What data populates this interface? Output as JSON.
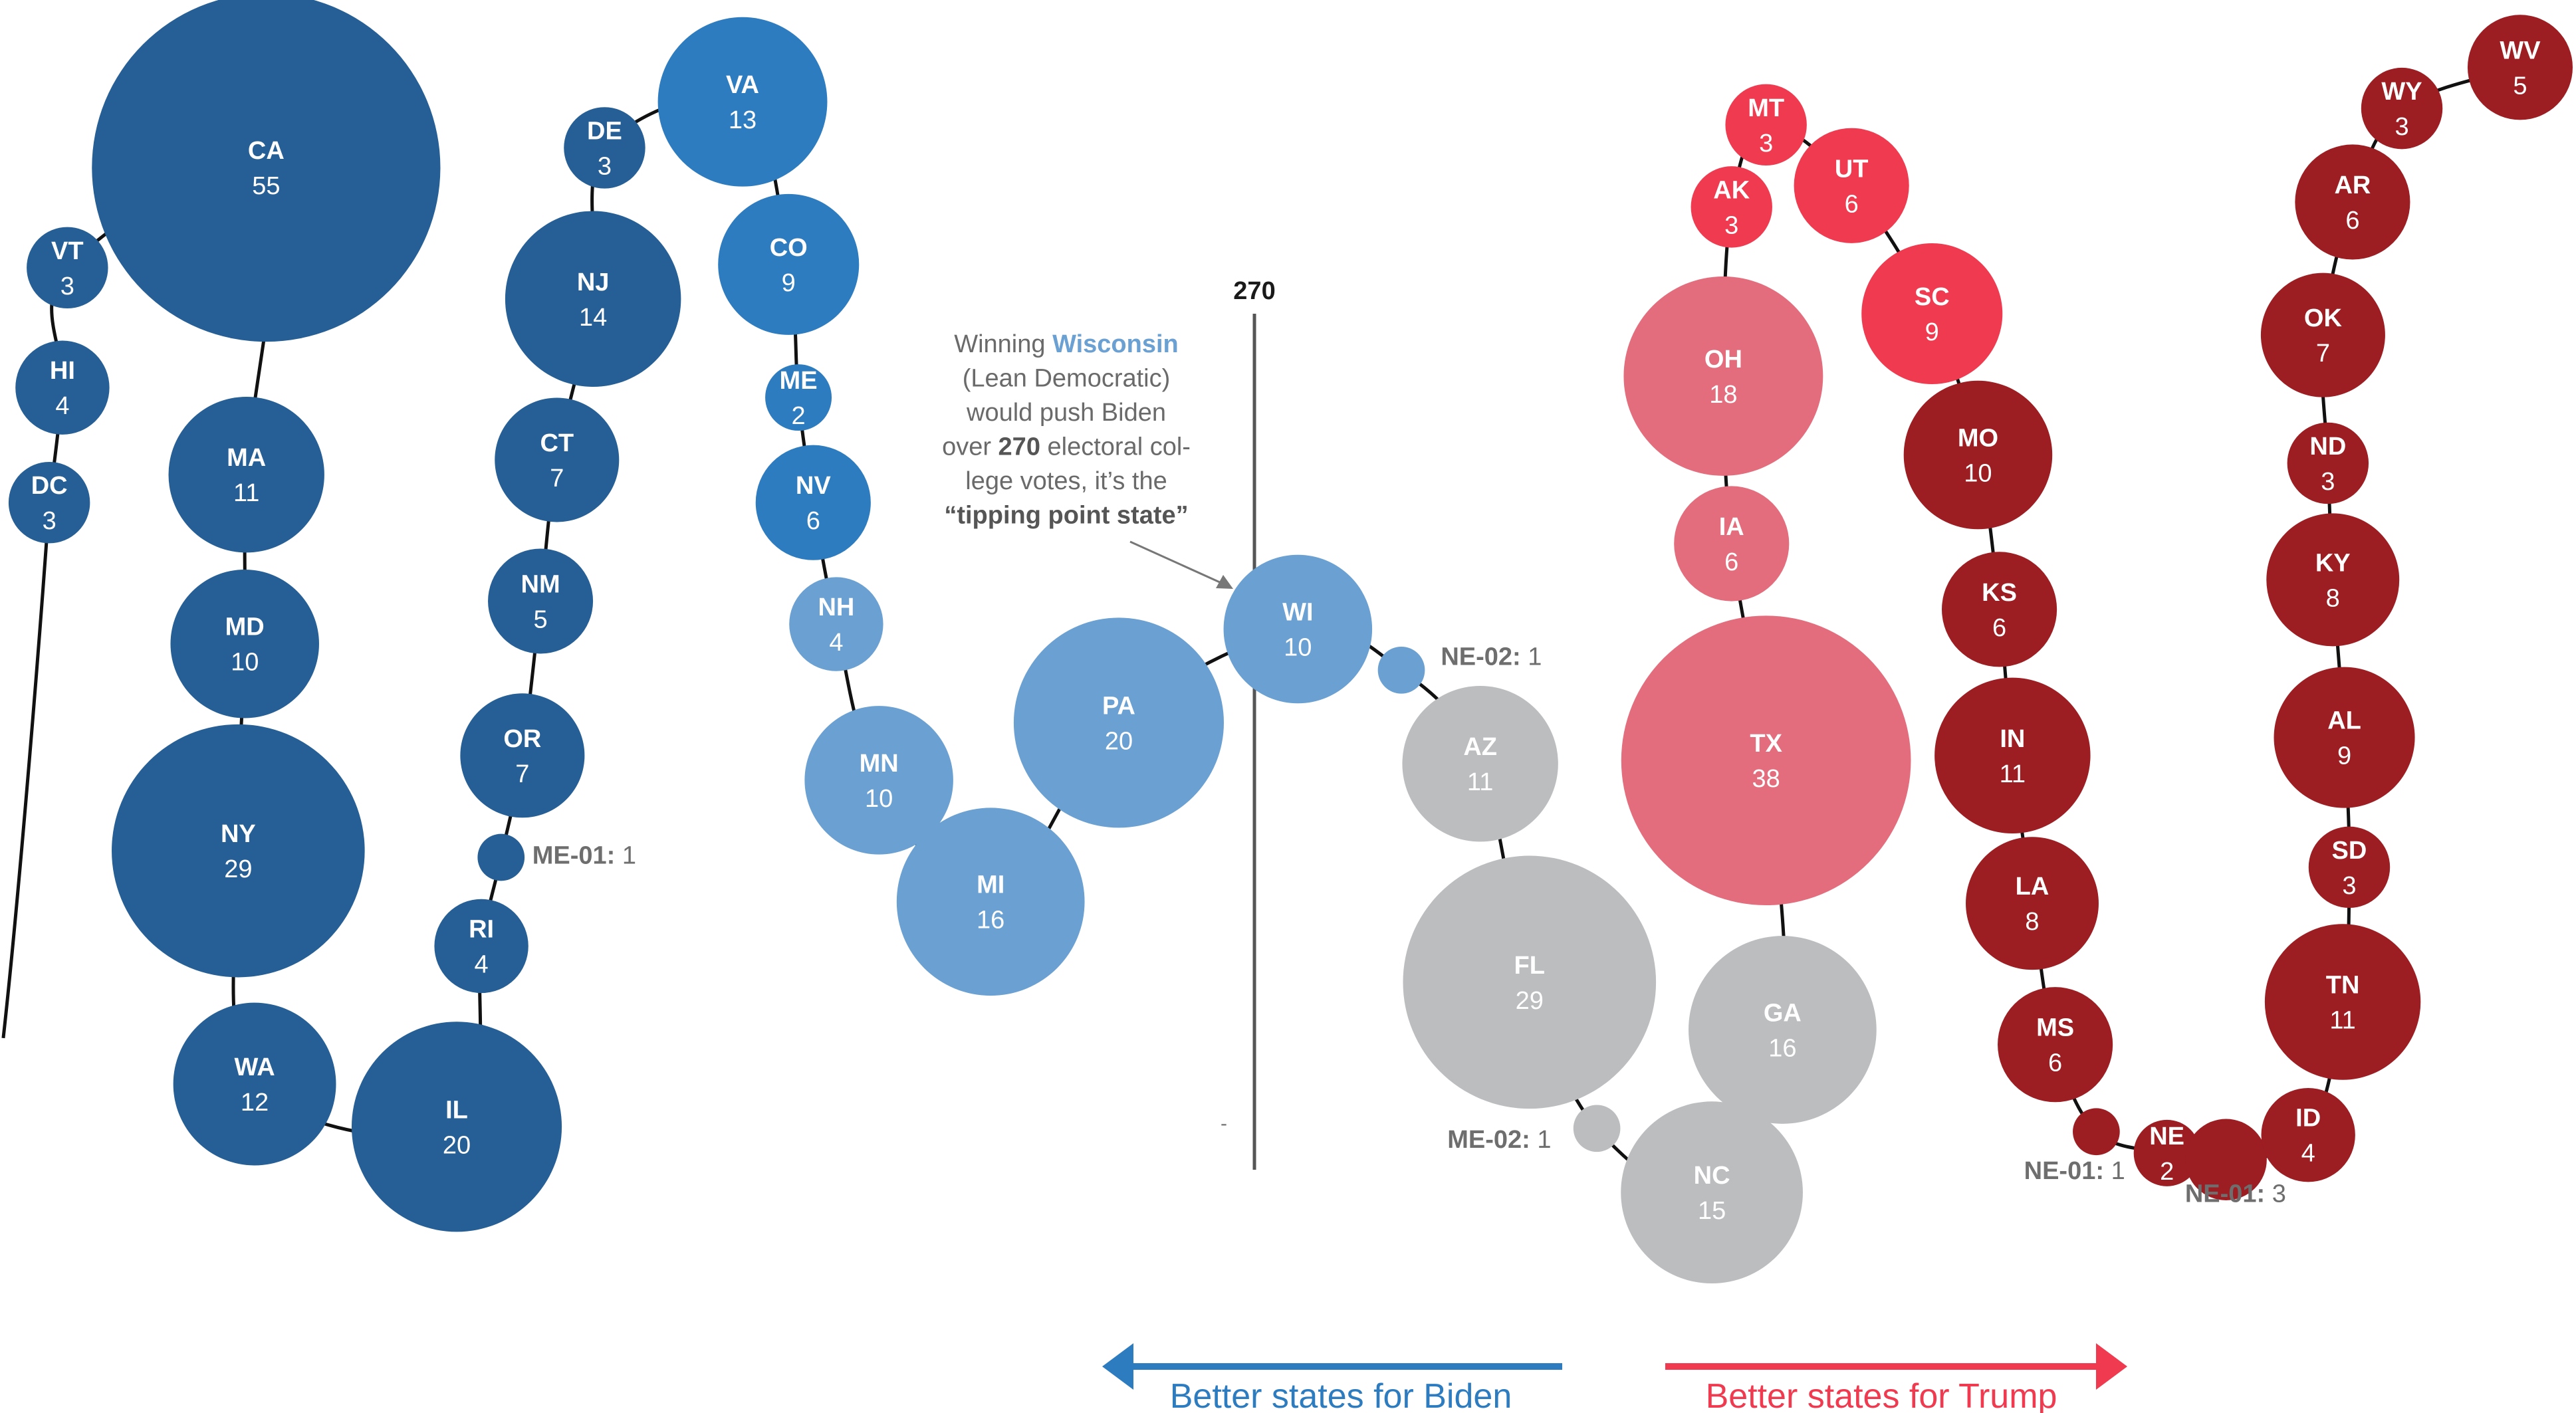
{
  "chart_data": {
    "type": "bubble-chain",
    "threshold": {
      "label": "270"
    },
    "annotation": {
      "lines": [
        [
          {
            "t": "Winning "
          },
          {
            "t": "Wisconsin",
            "s": "state"
          }
        ],
        [
          {
            "t": "(Lean Democratic)"
          }
        ],
        [
          {
            "t": "would push Biden"
          }
        ],
        [
          {
            "t": "over "
          },
          {
            "t": "270",
            "s": "bold"
          },
          {
            "t": " electoral col-"
          }
        ],
        [
          {
            "t": "lege votes, it’s the"
          }
        ],
        [
          {
            "t": "“tipping point state”",
            "s": "bold"
          }
        ]
      ]
    },
    "legend": {
      "biden": "Better states for Biden",
      "trump": "Better states for Trump"
    },
    "colors": {
      "safe_dem": "#255f95",
      "likely_dem": "#2e7cc0",
      "lean_dem": "#6aa0d2",
      "tossup": "#bcbdbf",
      "lean_rep": "#e46d7d",
      "likely_rep": "#ef3a4f",
      "safe_rep": "#9c1d22",
      "biden_arrow": "#2e7cc0",
      "trump_arrow": "#ef3a4f"
    },
    "states": [
      {
        "label": "DC",
        "value": 3,
        "category": "safe_dem"
      },
      {
        "label": "HI",
        "value": 4,
        "category": "safe_dem"
      },
      {
        "label": "VT",
        "value": 3,
        "category": "safe_dem"
      },
      {
        "label": "CA",
        "value": 55,
        "category": "safe_dem"
      },
      {
        "label": "MA",
        "value": 11,
        "category": "safe_dem"
      },
      {
        "label": "MD",
        "value": 10,
        "category": "safe_dem"
      },
      {
        "label": "NY",
        "value": 29,
        "category": "safe_dem"
      },
      {
        "label": "WA",
        "value": 12,
        "category": "safe_dem"
      },
      {
        "label": "IL",
        "value": 20,
        "category": "safe_dem"
      },
      {
        "label": "RI",
        "value": 4,
        "category": "safe_dem"
      },
      {
        "label": "ME-01:",
        "value": 1,
        "category": "safe_dem",
        "external": true
      },
      {
        "label": "OR",
        "value": 7,
        "category": "safe_dem"
      },
      {
        "label": "NM",
        "value": 5,
        "category": "safe_dem"
      },
      {
        "label": "CT",
        "value": 7,
        "category": "safe_dem"
      },
      {
        "label": "NJ",
        "value": 14,
        "category": "safe_dem"
      },
      {
        "label": "DE",
        "value": 3,
        "category": "safe_dem"
      },
      {
        "label": "VA",
        "value": 13,
        "category": "likely_dem"
      },
      {
        "label": "CO",
        "value": 9,
        "category": "likely_dem"
      },
      {
        "label": "ME",
        "value": 2,
        "category": "likely_dem"
      },
      {
        "label": "NV",
        "value": 6,
        "category": "likely_dem"
      },
      {
        "label": "NH",
        "value": 4,
        "category": "lean_dem"
      },
      {
        "label": "MN",
        "value": 10,
        "category": "lean_dem"
      },
      {
        "label": "MI",
        "value": 16,
        "category": "lean_dem"
      },
      {
        "label": "PA",
        "value": 20,
        "category": "lean_dem"
      },
      {
        "label": "WI",
        "value": 10,
        "category": "lean_dem"
      },
      {
        "label": "NE-02:",
        "value": 1,
        "category": "lean_dem",
        "external": true
      },
      {
        "label": "AZ",
        "value": 11,
        "category": "tossup"
      },
      {
        "label": "FL",
        "value": 29,
        "category": "tossup"
      },
      {
        "label": "ME-02:",
        "value": 1,
        "category": "tossup",
        "external": true
      },
      {
        "label": "NC",
        "value": 15,
        "category": "tossup"
      },
      {
        "label": "GA",
        "value": 16,
        "category": "tossup"
      },
      {
        "label": "TX",
        "value": 38,
        "category": "lean_rep"
      },
      {
        "label": "IA",
        "value": 6,
        "category": "lean_rep"
      },
      {
        "label": "OH",
        "value": 18,
        "category": "lean_rep"
      },
      {
        "label": "AK",
        "value": 3,
        "category": "likely_rep"
      },
      {
        "label": "MT",
        "value": 3,
        "category": "likely_rep"
      },
      {
        "label": "UT",
        "value": 6,
        "category": "likely_rep"
      },
      {
        "label": "SC",
        "value": 9,
        "category": "likely_rep"
      },
      {
        "label": "MO",
        "value": 10,
        "category": "safe_rep"
      },
      {
        "label": "KS",
        "value": 6,
        "category": "safe_rep"
      },
      {
        "label": "IN",
        "value": 11,
        "category": "safe_rep"
      },
      {
        "label": "LA",
        "value": 8,
        "category": "safe_rep"
      },
      {
        "label": "MS",
        "value": 6,
        "category": "safe_rep"
      },
      {
        "label": "NE-01:",
        "value": 1,
        "category": "safe_rep",
        "external": true
      },
      {
        "label": "NE",
        "value": 2,
        "category": "safe_rep"
      },
      {
        "label": "NE-01:",
        "value": 3,
        "category": "safe_rep",
        "external": true
      },
      {
        "label": "ID",
        "value": 4,
        "category": "safe_rep"
      },
      {
        "label": "TN",
        "value": 11,
        "category": "safe_rep"
      },
      {
        "label": "SD",
        "value": 3,
        "category": "safe_rep"
      },
      {
        "label": "AL",
        "value": 9,
        "category": "safe_rep"
      },
      {
        "label": "KY",
        "value": 8,
        "category": "safe_rep"
      },
      {
        "label": "ND",
        "value": 3,
        "category": "safe_rep"
      },
      {
        "label": "OK",
        "value": 7,
        "category": "safe_rep"
      },
      {
        "label": "AR",
        "value": 6,
        "category": "safe_rep"
      },
      {
        "label": "WY",
        "value": 3,
        "category": "safe_rep"
      },
      {
        "label": "WV",
        "value": 5,
        "category": "safe_rep"
      }
    ]
  }
}
